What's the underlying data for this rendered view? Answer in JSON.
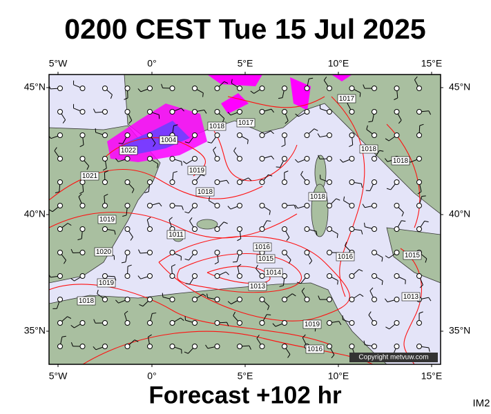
{
  "header": {
    "title": "0200 CEST Tue 15 Jul 2025"
  },
  "map": {
    "lon_labels": [
      "5°W",
      "0°",
      "5°E",
      "10°E",
      "15°E"
    ],
    "lat_labels": [
      "45°N",
      "40°N",
      "35°N"
    ],
    "isobar_labels": [
      1017,
      1017,
      1018,
      1018,
      1018,
      1018,
      1018,
      1022,
      1004,
      1019,
      1019,
      1019,
      1019,
      1020,
      1021,
      1016,
      1016,
      1016,
      1015,
      1015,
      1014,
      1013,
      1013,
      1011,
      1018
    ],
    "copyright": "Copyright metvuw.com"
  },
  "footer": {
    "forecast": "Forecast +102 hr",
    "code": "IM2"
  }
}
